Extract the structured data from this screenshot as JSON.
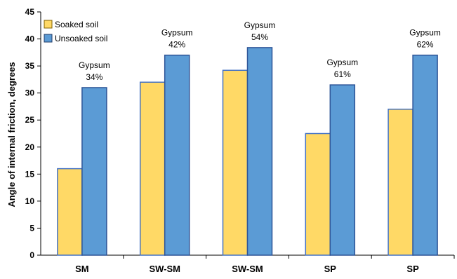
{
  "chart_data": {
    "type": "bar",
    "categories": [
      "SM",
      "SW-SM",
      "SW-SM",
      "SP",
      "SP"
    ],
    "series": [
      {
        "name": "Soaked soil",
        "values": [
          16,
          32,
          34.2,
          22.5,
          27
        ],
        "color": "#FFD966",
        "stroke": "#4472C4"
      },
      {
        "name": "Unsoaked soil",
        "values": [
          31,
          37,
          38.4,
          31.5,
          37
        ],
        "color": "#5B9BD5",
        "stroke": "#2E5597"
      }
    ],
    "annotations": [
      {
        "line1": "Gypsum",
        "line2": "34%"
      },
      {
        "line1": "Gypsum",
        "line2": "42%"
      },
      {
        "line1": "Gypsum",
        "line2": "54%"
      },
      {
        "line1": "Gypsum",
        "line2": "61%"
      },
      {
        "line1": "Gypsum",
        "line2": "62%"
      }
    ],
    "xlabel": "",
    "ylabel": "Angle of internal friction, degrees",
    "ylim": [
      0,
      45
    ],
    "yticks": [
      0,
      5,
      10,
      15,
      20,
      25,
      30,
      35,
      40,
      45
    ],
    "grid": false,
    "legend_position": "top-left"
  }
}
